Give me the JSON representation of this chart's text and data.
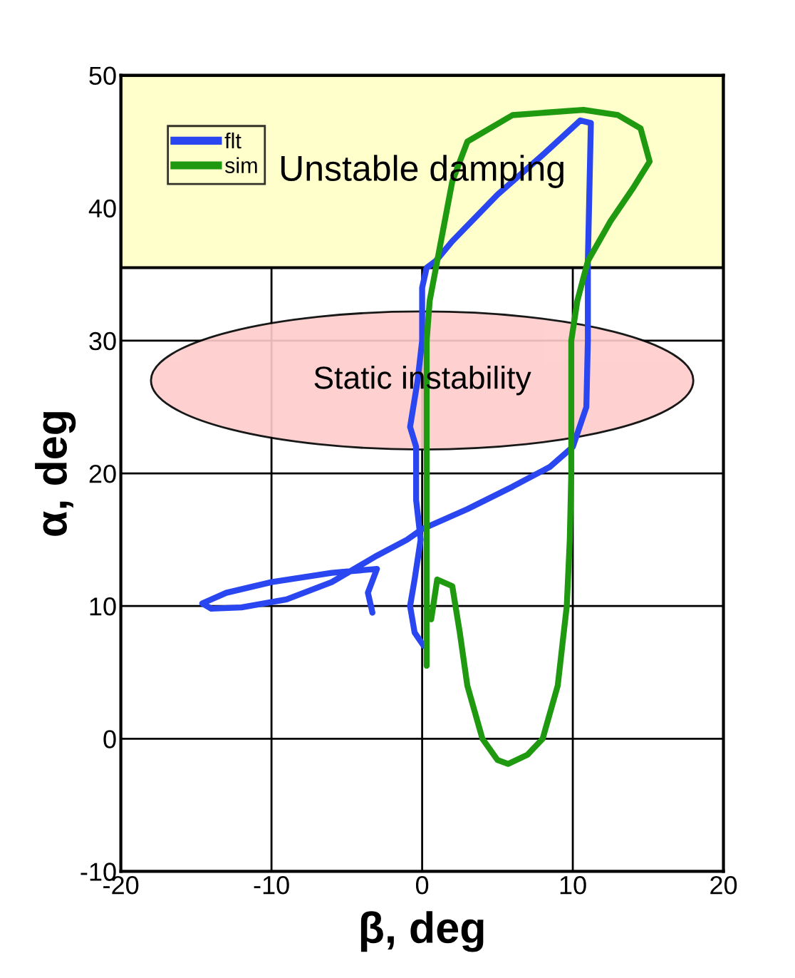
{
  "chart_data": {
    "type": "line",
    "xlabel": "β, deg",
    "ylabel": "α, deg",
    "xlim": [
      -20,
      20
    ],
    "xticks": [
      -20,
      -10,
      0,
      10,
      20
    ],
    "ylim": [
      -10,
      50
    ],
    "yticks": [
      -10,
      0,
      10,
      20,
      30,
      40,
      50
    ],
    "grid": true,
    "legend": "top left",
    "marker": "none",
    "line_style": "solid",
    "bands": [
      {
        "axis": "y",
        "from": 35.5,
        "to": 50,
        "label": "Unstable damping",
        "color": "#ffffcc"
      }
    ],
    "annotations": [
      {
        "text": "Static instability",
        "x": 0,
        "y": 27
      }
    ],
    "series": [
      {
        "name": "flt",
        "color": "#2a46f0",
        "x": [
          -3.3,
          -3.6,
          -3,
          -6,
          -10,
          -13,
          -14.6,
          -14,
          -12,
          -9,
          -6,
          -3,
          -1,
          0,
          3,
          6,
          8.5,
          10,
          10.9,
          11,
          11,
          11.2,
          10.5,
          8,
          5,
          2,
          0.9,
          0.3,
          0,
          0,
          -0.3,
          -0.8,
          -0.4,
          -0.4,
          -0.1,
          -0.5,
          -0.8,
          -0.5,
          0.1
        ],
        "values": [
          9.5,
          11,
          12.8,
          12.5,
          11.8,
          11,
          10.2,
          9.8,
          9.9,
          10.5,
          11.8,
          13.8,
          15,
          15.8,
          17.3,
          19,
          20.5,
          22,
          25,
          30,
          36,
          46.4,
          46.6,
          44,
          41,
          37.5,
          36,
          35.5,
          34,
          30,
          27,
          23.5,
          22,
          18,
          15,
          12,
          10,
          8,
          7
        ]
      },
      {
        "name": "sim",
        "color": "#1f9a10",
        "x": [
          0.6,
          1,
          2,
          2.5,
          3,
          4,
          5,
          5.7,
          7,
          8,
          9,
          9.6,
          9.8,
          9.9,
          9.9,
          10.3,
          11,
          12.5,
          14,
          15.1,
          14.5,
          13,
          10.7,
          6,
          3,
          2,
          1.5,
          1,
          0.5,
          0.3,
          0.3,
          0.3,
          0.3
        ],
        "values": [
          9,
          12,
          11.5,
          8,
          4,
          0,
          -1.6,
          -1.9,
          -1.2,
          0,
          4,
          10,
          15,
          20,
          30,
          33,
          36,
          39,
          41.5,
          43.5,
          46,
          47,
          47.4,
          47,
          45,
          42,
          39,
          36,
          33,
          30,
          20,
          12,
          5.5
        ]
      }
    ]
  }
}
